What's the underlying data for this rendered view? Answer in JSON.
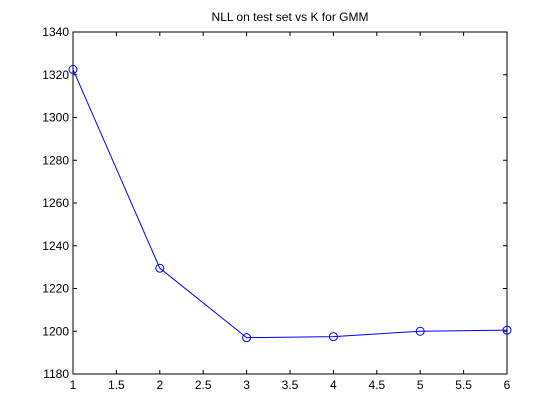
{
  "chart_data": {
    "type": "line",
    "title": "NLL on test set vs K for GMM",
    "xlabel": "",
    "ylabel": "",
    "xlim": [
      1,
      6
    ],
    "ylim": [
      1180,
      1340
    ],
    "x_ticks": [
      1,
      1.5,
      2,
      2.5,
      3,
      3.5,
      4,
      4.5,
      5,
      5.5,
      6
    ],
    "x_tick_labels": [
      "1",
      "1.5",
      "2",
      "2.5",
      "3",
      "3.5",
      "4",
      "4.5",
      "5",
      "5.5",
      "6"
    ],
    "y_ticks": [
      1180,
      1200,
      1220,
      1240,
      1260,
      1280,
      1300,
      1320,
      1340
    ],
    "y_tick_labels": [
      "1180",
      "1200",
      "1220",
      "1240",
      "1260",
      "1280",
      "1300",
      "1320",
      "1340"
    ],
    "grid": false,
    "legend": "none",
    "series": [
      {
        "color": "#0000ff",
        "marker": "circle",
        "x": [
          1,
          2,
          3,
          4,
          5,
          6
        ],
        "y": [
          1322.5,
          1229.5,
          1197,
          1197.5,
          1200,
          1200.5
        ]
      }
    ]
  }
}
